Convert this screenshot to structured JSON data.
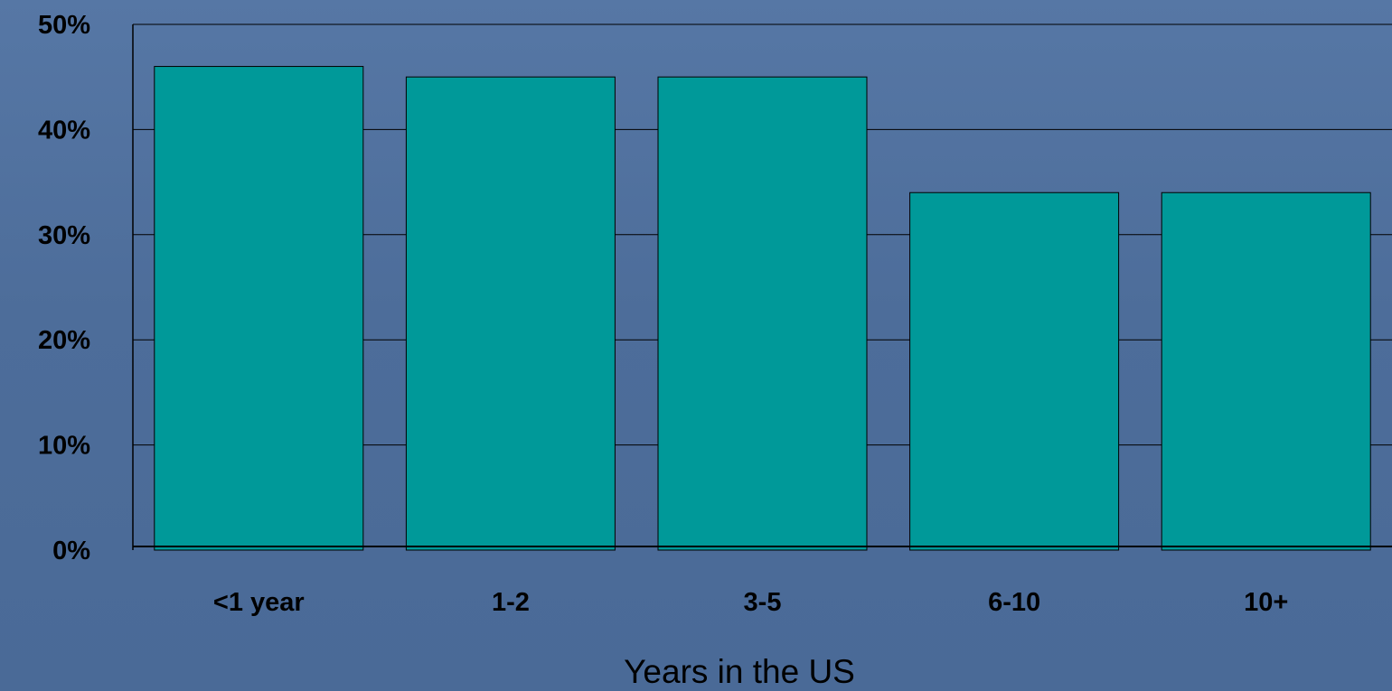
{
  "chart_data": {
    "type": "bar",
    "categories": [
      "<1 year",
      "1-2",
      "3-5",
      "6-10",
      "10+"
    ],
    "values": [
      46,
      45,
      45,
      34,
      34
    ],
    "title": "",
    "xlabel": "Years in the US",
    "ylabel": "",
    "ylim": [
      0,
      50
    ],
    "yticks": [
      "0%",
      "10%",
      "20%",
      "30%",
      "40%",
      "50%"
    ],
    "grid": true,
    "colors": {
      "bar_fill": "#009999",
      "bar_stroke": "#000000",
      "gridline": "#000000",
      "background": "#4f6f9c"
    }
  }
}
